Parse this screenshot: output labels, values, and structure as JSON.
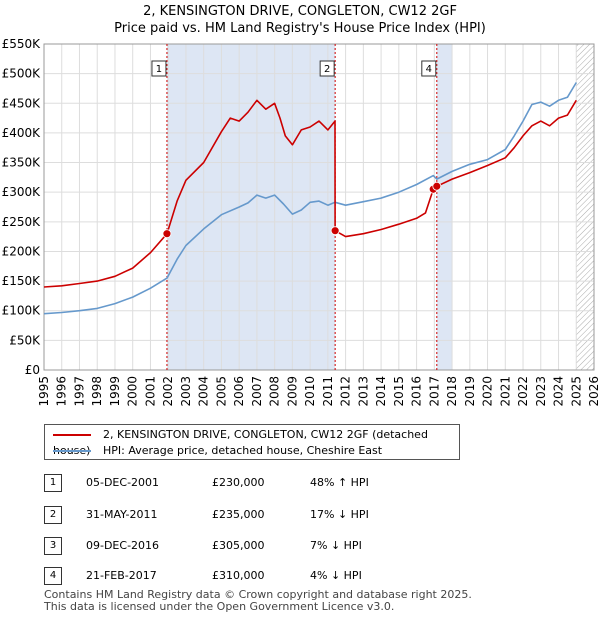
{
  "title": "2, KENSINGTON DRIVE, CONGLETON, CW12 2GF",
  "subtitle": "Price paid vs. HM Land Registry's House Price Index (HPI)",
  "colors": {
    "property": "#cc0000",
    "hpi": "#6699cc",
    "shade": "#dde6f4",
    "marker_line": "#cc0000"
  },
  "legend": [
    {
      "label": "2, KENSINGTON DRIVE, CONGLETON, CW12 2GF (detached house)",
      "color": "#cc0000"
    },
    {
      "label": "HPI: Average price, detached house, Cheshire East",
      "color": "#6699cc"
    }
  ],
  "transactions": [
    {
      "id": "1",
      "date": "05-DEC-2001",
      "price": "£230,000",
      "hpi": "48% ↑ HPI"
    },
    {
      "id": "2",
      "date": "31-MAY-2011",
      "price": "£235,000",
      "hpi": "17% ↓ HPI"
    },
    {
      "id": "3",
      "date": "09-DEC-2016",
      "price": "£305,000",
      "hpi": "7% ↓ HPI"
    },
    {
      "id": "4",
      "date": "21-FEB-2017",
      "price": "£310,000",
      "hpi": "4% ↓ HPI"
    }
  ],
  "footer": [
    "Contains HM Land Registry data © Crown copyright and database right 2025.",
    "This data is licensed under the Open Government Licence v3.0."
  ],
  "chart_data": {
    "type": "line",
    "xlim": [
      1995,
      2026
    ],
    "ylim": [
      0,
      550000
    ],
    "x_ticks": [
      "1995",
      "1996",
      "1997",
      "1998",
      "1999",
      "2000",
      "2001",
      "2002",
      "2003",
      "2004",
      "2005",
      "2006",
      "2007",
      "2008",
      "2009",
      "2010",
      "2011",
      "2012",
      "2013",
      "2014",
      "2015",
      "2016",
      "2017",
      "2018",
      "2019",
      "2020",
      "2021",
      "2022",
      "2023",
      "2024",
      "2025",
      "2026"
    ],
    "y_ticks": [
      {
        "value": 0,
        "label": "£0"
      },
      {
        "value": 50000,
        "label": "£50K"
      },
      {
        "value": 100000,
        "label": "£100K"
      },
      {
        "value": 150000,
        "label": "£150K"
      },
      {
        "value": 200000,
        "label": "£200K"
      },
      {
        "value": 250000,
        "label": "£250K"
      },
      {
        "value": 300000,
        "label": "£300K"
      },
      {
        "value": 350000,
        "label": "£350K"
      },
      {
        "value": 400000,
        "label": "£400K"
      },
      {
        "value": 450000,
        "label": "£450K"
      },
      {
        "value": 500000,
        "label": "£500K"
      },
      {
        "value": 550000,
        "label": "£550K"
      }
    ],
    "grid": true,
    "shaded_ranges": [
      [
        2001.93,
        2011.41
      ],
      [
        2017.14,
        2018.0
      ]
    ],
    "hatched_range": [
      2025.0,
      2026.0
    ],
    "sale_markers": [
      {
        "id": "1",
        "x": 2001.93,
        "y": 230000
      },
      {
        "id": "2",
        "x": 2011.41,
        "y": 235000
      },
      {
        "id": "3",
        "x": 2016.94,
        "y": 305000
      },
      {
        "id": "4",
        "x": 2017.14,
        "y": 310000
      }
    ],
    "series": [
      {
        "name": "2, KENSINGTON DRIVE, CONGLETON, CW12 2GF (detached house)",
        "color": "#cc0000",
        "x": [
          1995,
          1996,
          1997,
          1998,
          1999,
          2000,
          2001,
          2001.93,
          2002.5,
          2003,
          2004,
          2005,
          2005.5,
          2006,
          2006.5,
          2007,
          2007.5,
          2008,
          2008.3,
          2008.6,
          2009,
          2009.5,
          2010,
          2010.5,
          2011,
          2011.4,
          2011.41,
          2012,
          2013,
          2014,
          2015,
          2016,
          2016.5,
          2016.94,
          2017.14,
          2018,
          2019,
          2020,
          2021,
          2021.5,
          2022,
          2022.5,
          2023,
          2023.5,
          2024,
          2024.5,
          2025
        ],
        "y": [
          140000,
          142000,
          146000,
          150000,
          158000,
          172000,
          198000,
          230000,
          285000,
          320000,
          350000,
          402000,
          425000,
          420000,
          435000,
          455000,
          440000,
          450000,
          425000,
          395000,
          380000,
          405000,
          410000,
          420000,
          405000,
          420000,
          235000,
          225000,
          230000,
          237000,
          246000,
          256000,
          265000,
          305000,
          310000,
          322000,
          333000,
          345000,
          358000,
          375000,
          395000,
          412000,
          420000,
          412000,
          425000,
          430000,
          455000
        ]
      },
      {
        "name": "HPI: Average price, detached house, Cheshire East",
        "color": "#6699cc",
        "x": [
          1995,
          1996,
          1997,
          1998,
          1999,
          2000,
          2001,
          2001.93,
          2002.5,
          2003,
          2004,
          2005,
          2006,
          2006.5,
          2007,
          2007.5,
          2008,
          2008.5,
          2009,
          2009.5,
          2010,
          2010.5,
          2011,
          2011.41,
          2012,
          2013,
          2014,
          2015,
          2016,
          2016.94,
          2017.14,
          2018,
          2019,
          2020,
          2021,
          2021.5,
          2022,
          2022.5,
          2023,
          2023.5,
          2024,
          2024.5,
          2025
        ],
        "y": [
          95000,
          97000,
          100000,
          104000,
          112000,
          123000,
          138000,
          155000,
          187000,
          210000,
          238000,
          262000,
          275000,
          282000,
          295000,
          290000,
          295000,
          280000,
          263000,
          270000,
          283000,
          285000,
          278000,
          283000,
          278000,
          284000,
          290000,
          300000,
          313000,
          328000,
          322000,
          335000,
          347000,
          355000,
          372000,
          395000,
          420000,
          448000,
          452000,
          445000,
          455000,
          460000,
          485000
        ]
      }
    ]
  }
}
